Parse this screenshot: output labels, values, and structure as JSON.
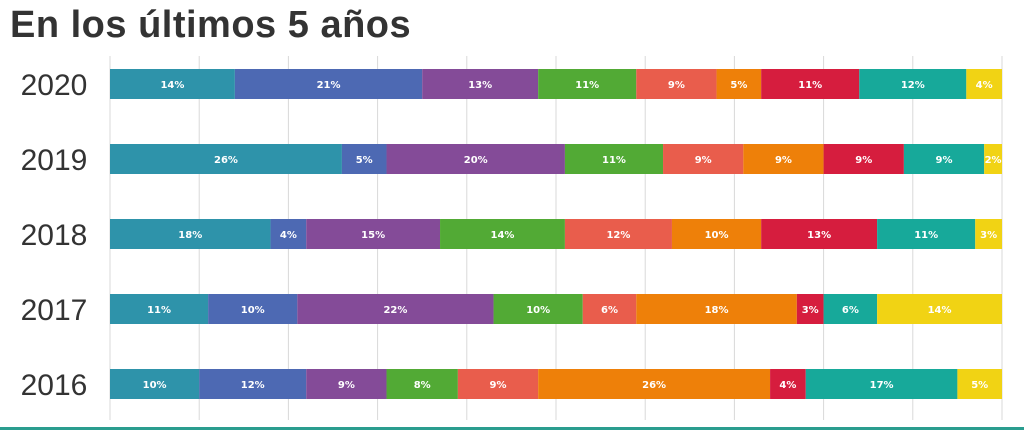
{
  "chart_data": {
    "type": "bar",
    "orientation": "horizontal",
    "stacked": true,
    "title": "En los últimos 5 años",
    "categories": [
      "2020",
      "2019",
      "2018",
      "2017",
      "2016"
    ],
    "xlim": [
      0,
      100
    ],
    "grid": true,
    "series": [
      {
        "color": "#2e93aa",
        "values": [
          14,
          26,
          18,
          11,
          10
        ]
      },
      {
        "color": "#4d69b3",
        "values": [
          21,
          5,
          4,
          10,
          12
        ]
      },
      {
        "color": "#844b98",
        "values": [
          13,
          20,
          15,
          22,
          9
        ]
      },
      {
        "color": "#52aa35",
        "values": [
          11,
          11,
          14,
          10,
          8
        ]
      },
      {
        "color": "#e95d4c",
        "values": [
          9,
          9,
          12,
          6,
          9
        ]
      },
      {
        "color": "#ee8009",
        "values": [
          5,
          9,
          10,
          18,
          26
        ]
      },
      {
        "color": "#d61d3e",
        "values": [
          11,
          9,
          13,
          3,
          4
        ]
      },
      {
        "color": "#17a99a",
        "values": [
          12,
          9,
          11,
          6,
          17
        ]
      },
      {
        "color": "#f1d314",
        "values": [
          4,
          2,
          3,
          14,
          5
        ]
      }
    ],
    "label_suffix": "%"
  }
}
